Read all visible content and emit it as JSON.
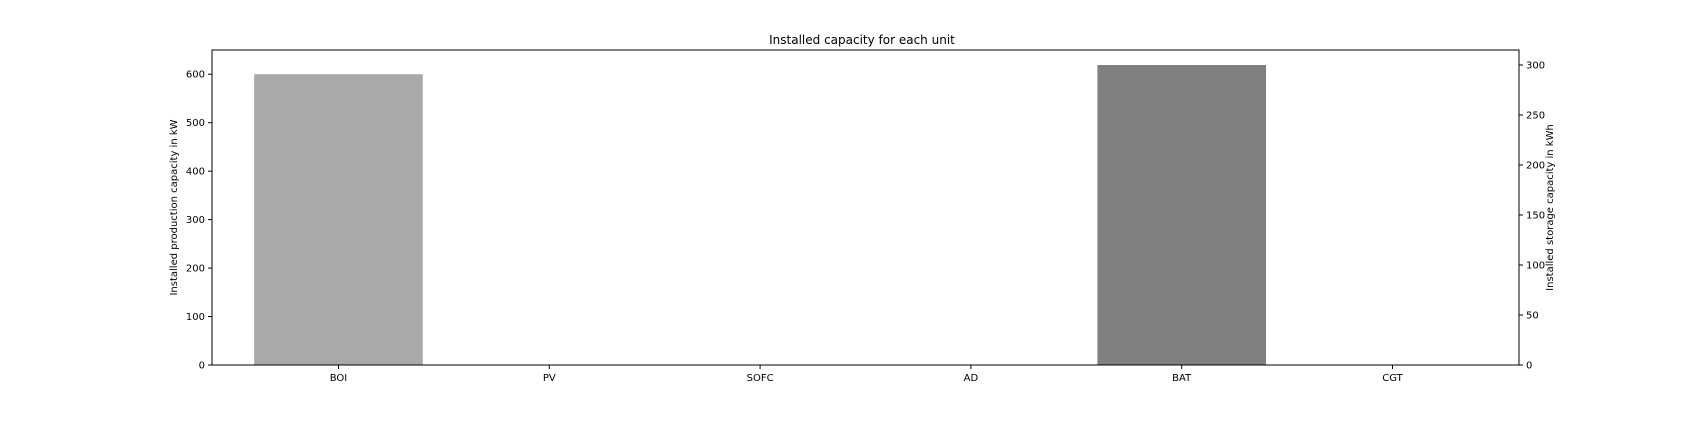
{
  "chart_data": {
    "type": "bar",
    "title": "Installed capacity for each unit",
    "categories": [
      "BOI",
      "PV",
      "SOFC",
      "AD",
      "BAT",
      "CGT"
    ],
    "series": [
      {
        "axis": "left",
        "values": [
          600,
          0,
          0,
          0,
          0,
          0
        ],
        "color": "#a9a9a9"
      },
      {
        "axis": "right",
        "values": [
          0,
          0,
          0,
          0,
          300,
          0
        ],
        "color": "#808080"
      }
    ],
    "ylabel": "Installed production capacity in kW",
    "ylabel_right": "Installed storage capacity in kWh",
    "ylim": [
      0,
      650
    ],
    "ylim_right": [
      0,
      315
    ],
    "yticks": [
      0,
      100,
      200,
      300,
      400,
      500,
      600
    ],
    "yticks_right": [
      0,
      50,
      100,
      150,
      200,
      250,
      300
    ],
    "grid": false,
    "legend": "none"
  }
}
